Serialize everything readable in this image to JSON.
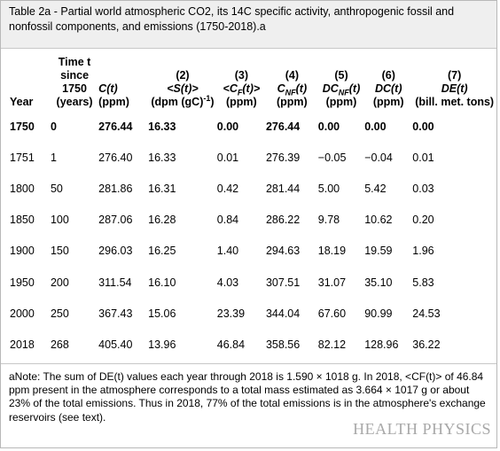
{
  "caption": "Table 2a - Partial world atmospheric CO2, its 14C specific activity, anthropogenic fossil and nonfossil components, and emissions (1750-2018).a",
  "columns": [
    {
      "line1": "",
      "line2": "",
      "line3": "",
      "label": "Year"
    },
    {
      "line1": "Time t",
      "line2": "since",
      "line3": "1750",
      "label": "(years)"
    },
    {
      "num": "",
      "sym": "C(t)",
      "unit": "(ppm)"
    },
    {
      "num": "(2)",
      "sym": "<S(t)>",
      "unit": "(dpm (gC)",
      "sup": "-1",
      "unit_end": ")"
    },
    {
      "num": "(3)",
      "sym_pre": "<C",
      "sym_sub": "F",
      "sym_post": "(t)>",
      "unit": "(ppm)"
    },
    {
      "num": "(4)",
      "sym_pre": "C",
      "sym_sub": "NF",
      "sym_post": "(t)",
      "unit": "(ppm)"
    },
    {
      "num": "(5)",
      "sym_pre": "DC",
      "sym_sub": "NF",
      "sym_post": "(t)",
      "unit": "(ppm)"
    },
    {
      "num": "(6)",
      "sym": "DC(t)",
      "unit": "(ppm)"
    },
    {
      "num": "(7)",
      "sym": "DE(t)",
      "unit": "(bill. met. tons)"
    }
  ],
  "rows": [
    [
      "1750",
      "0",
      "276.44",
      "16.33",
      "0.00",
      "276.44",
      "0.00",
      "0.00",
      "0.00"
    ],
    [
      "1751",
      "1",
      "276.40",
      "16.33",
      "0.01",
      "276.39",
      "−0.05",
      "−0.04",
      "0.01"
    ],
    [
      "1800",
      "50",
      "281.86",
      "16.31",
      "0.42",
      "281.44",
      "5.00",
      "5.42",
      "0.03"
    ],
    [
      "1850",
      "100",
      "287.06",
      "16.28",
      "0.84",
      "286.22",
      "9.78",
      "10.62",
      "0.20"
    ],
    [
      "1900",
      "150",
      "296.03",
      "16.25",
      "1.40",
      "294.63",
      "18.19",
      "19.59",
      "1.96"
    ],
    [
      "1950",
      "200",
      "311.54",
      "16.10",
      "4.03",
      "307.51",
      "31.07",
      "35.10",
      "5.83"
    ],
    [
      "2000",
      "250",
      "367.43",
      "15.06",
      "23.39",
      "344.04",
      "67.60",
      "90.99",
      "24.53"
    ],
    [
      "2018",
      "268",
      "405.40",
      "13.96",
      "46.84",
      "358.56",
      "82.12",
      "128.96",
      "36.22"
    ]
  ],
  "note": "aNote: The sum of DE(t) values each year through 2018 is 1.590 × 1018 g. In 2018, <CF(t)> of 46.84 ppm present in the atmosphere corresponds to a total mass estimated as 3.664 × 1017 g or about 23% of the total emissions. Thus in 2018, 77% of the total emissions is in the atmosphere's exchange reservoirs (see text).",
  "watermark": "HEALTH PHYSICS"
}
